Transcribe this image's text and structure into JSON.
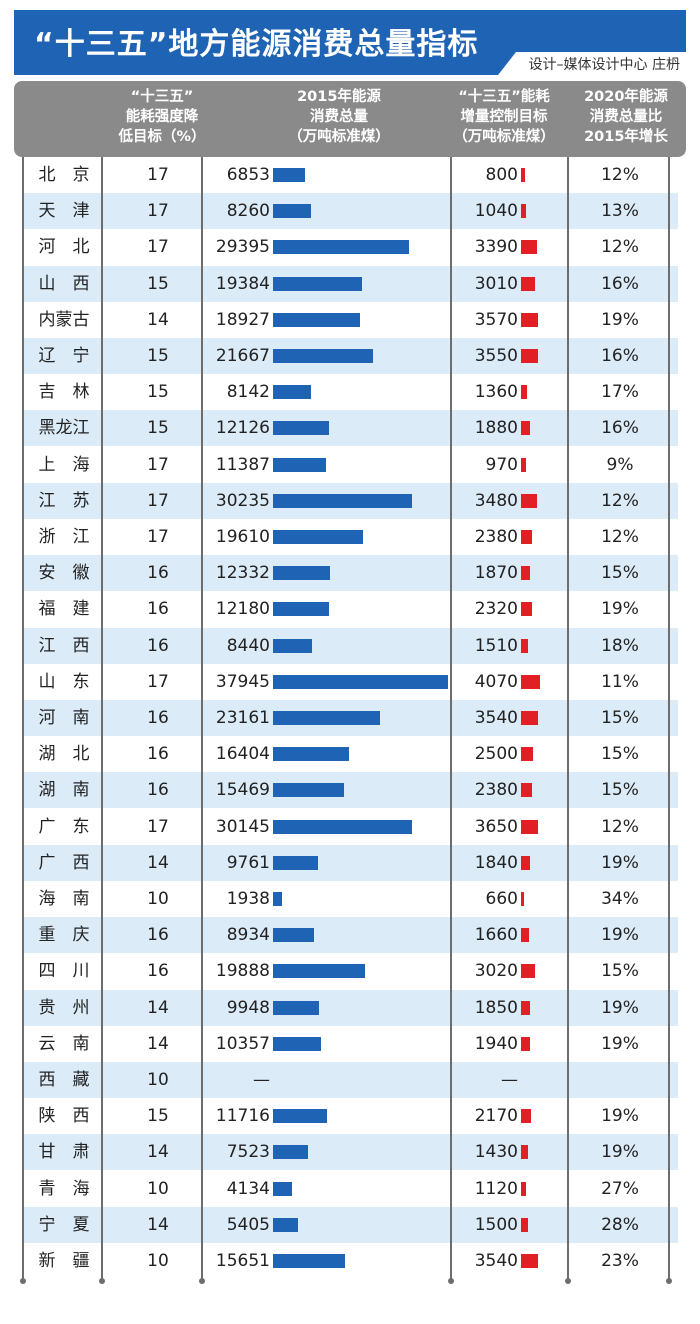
{
  "header": {
    "title": "“十三五”地方能源消费总量指标",
    "credit": "设计–媒体设计中心 庄枬"
  },
  "columns": {
    "target": [
      "“十三五”",
      "能耗强度降",
      "低目标（%）"
    ],
    "energy": [
      "2015年能源",
      "消费总量",
      "（万吨标准煤）"
    ],
    "increase": [
      "“十三五”能耗",
      "增量控制目标",
      "（万吨标准煤）"
    ],
    "growth": [
      "2020年能源",
      "消费总量比",
      "2015年增长"
    ]
  },
  "colors": {
    "banner": "#1e63b4",
    "header": "#8a8a8a",
    "energy_bar": "#1e63b4",
    "increase_bar": "#e21f24",
    "alt_row": "#dcebf8"
  },
  "chart_data": {
    "type": "table",
    "rows": [
      {
        "name": "北　京",
        "target": "17",
        "energy": 6853,
        "energy_label": "6853",
        "increase": 800,
        "increase_label": "800",
        "growth": "12%"
      },
      {
        "name": "天　津",
        "target": "17",
        "energy": 8260,
        "energy_label": "8260",
        "increase": 1040,
        "increase_label": "1040",
        "growth": "13%"
      },
      {
        "name": "河　北",
        "target": "17",
        "energy": 29395,
        "energy_label": "29395",
        "increase": 3390,
        "increase_label": "3390",
        "growth": "12%"
      },
      {
        "name": "山　西",
        "target": "15",
        "energy": 19384,
        "energy_label": "19384",
        "increase": 3010,
        "increase_label": "3010",
        "growth": "16%"
      },
      {
        "name": "内蒙古",
        "target": "14",
        "energy": 18927,
        "energy_label": "18927",
        "increase": 3570,
        "increase_label": "3570",
        "growth": "19%"
      },
      {
        "name": "辽　宁",
        "target": "15",
        "energy": 21667,
        "energy_label": "21667",
        "increase": 3550,
        "increase_label": "3550",
        "growth": "16%"
      },
      {
        "name": "吉　林",
        "target": "15",
        "energy": 8142,
        "energy_label": "8142",
        "increase": 1360,
        "increase_label": "1360",
        "growth": "17%"
      },
      {
        "name": "黑龙江",
        "target": "15",
        "energy": 12126,
        "energy_label": "12126",
        "increase": 1880,
        "increase_label": "1880",
        "growth": "16%"
      },
      {
        "name": "上　海",
        "target": "17",
        "energy": 11387,
        "energy_label": "11387",
        "increase": 970,
        "increase_label": "970",
        "growth": "9%"
      },
      {
        "name": "江　苏",
        "target": "17",
        "energy": 30235,
        "energy_label": "30235",
        "increase": 3480,
        "increase_label": "3480",
        "growth": "12%"
      },
      {
        "name": "浙　江",
        "target": "17",
        "energy": 19610,
        "energy_label": "19610",
        "increase": 2380,
        "increase_label": "2380",
        "growth": "12%"
      },
      {
        "name": "安　徽",
        "target": "16",
        "energy": 12332,
        "energy_label": "12332",
        "increase": 1870,
        "increase_label": "1870",
        "growth": "15%"
      },
      {
        "name": "福　建",
        "target": "16",
        "energy": 12180,
        "energy_label": "12180",
        "increase": 2320,
        "increase_label": "2320",
        "growth": "19%"
      },
      {
        "name": "江　西",
        "target": "16",
        "energy": 8440,
        "energy_label": "8440",
        "increase": 1510,
        "increase_label": "1510",
        "growth": "18%"
      },
      {
        "name": "山　东",
        "target": "17",
        "energy": 37945,
        "energy_label": "37945",
        "increase": 4070,
        "increase_label": "4070",
        "growth": "11%"
      },
      {
        "name": "河　南",
        "target": "16",
        "energy": 23161,
        "energy_label": "23161",
        "increase": 3540,
        "increase_label": "3540",
        "growth": "15%"
      },
      {
        "name": "湖　北",
        "target": "16",
        "energy": 16404,
        "energy_label": "16404",
        "increase": 2500,
        "increase_label": "2500",
        "growth": "15%"
      },
      {
        "name": "湖　南",
        "target": "16",
        "energy": 15469,
        "energy_label": "15469",
        "increase": 2380,
        "increase_label": "2380",
        "growth": "15%"
      },
      {
        "name": "广　东",
        "target": "17",
        "energy": 30145,
        "energy_label": "30145",
        "increase": 3650,
        "increase_label": "3650",
        "growth": "12%"
      },
      {
        "name": "广　西",
        "target": "14",
        "energy": 9761,
        "energy_label": "9761",
        "increase": 1840,
        "increase_label": "1840",
        "growth": "19%"
      },
      {
        "name": "海　南",
        "target": "10",
        "energy": 1938,
        "energy_label": "1938",
        "increase": 660,
        "increase_label": "660",
        "growth": "34%"
      },
      {
        "name": "重　庆",
        "target": "16",
        "energy": 8934,
        "energy_label": "8934",
        "increase": 1660,
        "increase_label": "1660",
        "growth": "19%"
      },
      {
        "name": "四　川",
        "target": "16",
        "energy": 19888,
        "energy_label": "19888",
        "increase": 3020,
        "increase_label": "3020",
        "growth": "15%"
      },
      {
        "name": "贵　州",
        "target": "14",
        "energy": 9948,
        "energy_label": "9948",
        "increase": 1850,
        "increase_label": "1850",
        "growth": "19%"
      },
      {
        "name": "云　南",
        "target": "14",
        "energy": 10357,
        "energy_label": "10357",
        "increase": 1940,
        "increase_label": "1940",
        "growth": "19%"
      },
      {
        "name": "西　藏",
        "target": "10",
        "energy": null,
        "energy_label": "—",
        "increase": null,
        "increase_label": "—",
        "growth": ""
      },
      {
        "name": "陕　西",
        "target": "15",
        "energy": 11716,
        "energy_label": "11716",
        "increase": 2170,
        "increase_label": "2170",
        "growth": "19%"
      },
      {
        "name": "甘　肃",
        "target": "14",
        "energy": 7523,
        "energy_label": "7523",
        "increase": 1430,
        "increase_label": "1430",
        "growth": "19%"
      },
      {
        "name": "青　海",
        "target": "10",
        "energy": 4134,
        "energy_label": "4134",
        "increase": 1120,
        "increase_label": "1120",
        "growth": "27%"
      },
      {
        "name": "宁　夏",
        "target": "14",
        "energy": 5405,
        "energy_label": "5405",
        "increase": 1500,
        "increase_label": "1500",
        "growth": "28%"
      },
      {
        "name": "新　疆",
        "target": "10",
        "energy": 15651,
        "energy_label": "15651",
        "increase": 3540,
        "increase_label": "3540",
        "growth": "23%"
      }
    ]
  }
}
